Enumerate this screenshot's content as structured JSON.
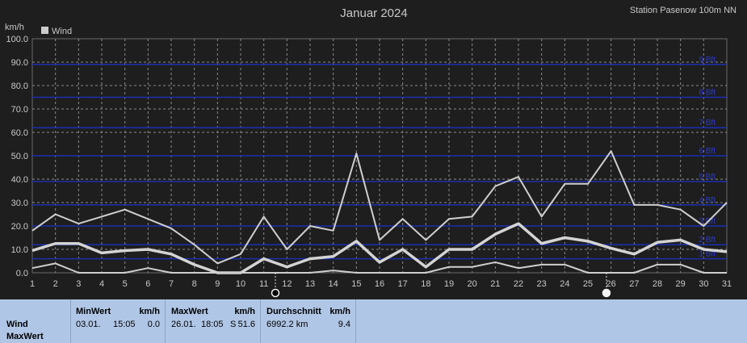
{
  "title": "Januar 2024",
  "station": "Station Pasenow 100m NN",
  "chart_data": {
    "type": "line",
    "ylabel": "km/h",
    "ylim": [
      0,
      100
    ],
    "yticks": [
      "0.0",
      "10.0",
      "20.0",
      "30.0",
      "40.0",
      "50.0",
      "60.0",
      "70.0",
      "80.0",
      "90.0",
      "100.0"
    ],
    "x": [
      1,
      2,
      3,
      4,
      5,
      6,
      7,
      8,
      9,
      10,
      11,
      12,
      13,
      14,
      15,
      16,
      17,
      18,
      19,
      20,
      21,
      22,
      23,
      24,
      25,
      26,
      27,
      28,
      29,
      30,
      31
    ],
    "legend": [
      {
        "name": "Wind",
        "color": "#cccccc"
      }
    ],
    "series": [
      {
        "name": "max",
        "color": "#cfcfcf",
        "width": 2,
        "values": [
          18,
          25,
          21,
          24,
          27,
          23,
          19,
          12,
          4,
          8,
          24,
          10,
          20,
          18,
          51,
          14,
          23,
          14,
          23,
          24,
          37,
          41,
          24,
          38,
          38,
          52,
          29,
          29,
          27,
          20,
          30
        ]
      },
      {
        "name": "avg",
        "color": "#d4d4d4",
        "width": 3.5,
        "values": [
          9.5,
          12.5,
          12.5,
          8.5,
          9.5,
          10,
          8,
          3.5,
          0,
          0,
          6,
          2.5,
          6,
          7,
          13.5,
          4.5,
          10,
          2.5,
          10,
          10,
          16.5,
          21,
          12.5,
          15,
          13.5,
          10.5,
          8,
          13,
          14,
          10,
          9
        ]
      },
      {
        "name": "min",
        "color": "#cfcfcf",
        "width": 2,
        "values": [
          2,
          4,
          0,
          0,
          0,
          2,
          0,
          0,
          0,
          0,
          0,
          0,
          0,
          1,
          0,
          0,
          0,
          0,
          2.5,
          2.5,
          4.5,
          2,
          3.5,
          3.5,
          0,
          0,
          0,
          3.5,
          3.5,
          0,
          0
        ]
      }
    ],
    "beaufort": [
      {
        "label": "1 Bft",
        "kmh": 6
      },
      {
        "label": "2 Bft",
        "kmh": 12
      },
      {
        "label": "3 Bft",
        "kmh": 20
      },
      {
        "label": "4 Bft",
        "kmh": 29
      },
      {
        "label": "5 Bft",
        "kmh": 39
      },
      {
        "label": "6 Bft",
        "kmh": 50
      },
      {
        "label": "7 Bft",
        "kmh": 62
      },
      {
        "label": "8 Bft",
        "kmh": 75
      },
      {
        "label": "9 Bft",
        "kmh": 89
      }
    ],
    "markers": [
      {
        "day": 11.5,
        "symbol": "new-moon"
      },
      {
        "day": 25.8,
        "symbol": "full-moon"
      }
    ]
  },
  "stats": {
    "row_label_1": "Wind",
    "row_label_2": "MaxWert",
    "min": {
      "header": "MinWert",
      "unit": "km/h",
      "date": "03.01.",
      "time": "15:05",
      "value": "0.0"
    },
    "max": {
      "header": "MaxWert",
      "unit": "km/h",
      "date": "26.01.",
      "time": "18:05",
      "dir": "S",
      "value": "51.6"
    },
    "avg": {
      "header": "Durchschnitt",
      "unit": "km/h",
      "distance": "6992.2 km",
      "value": "9.4"
    }
  }
}
